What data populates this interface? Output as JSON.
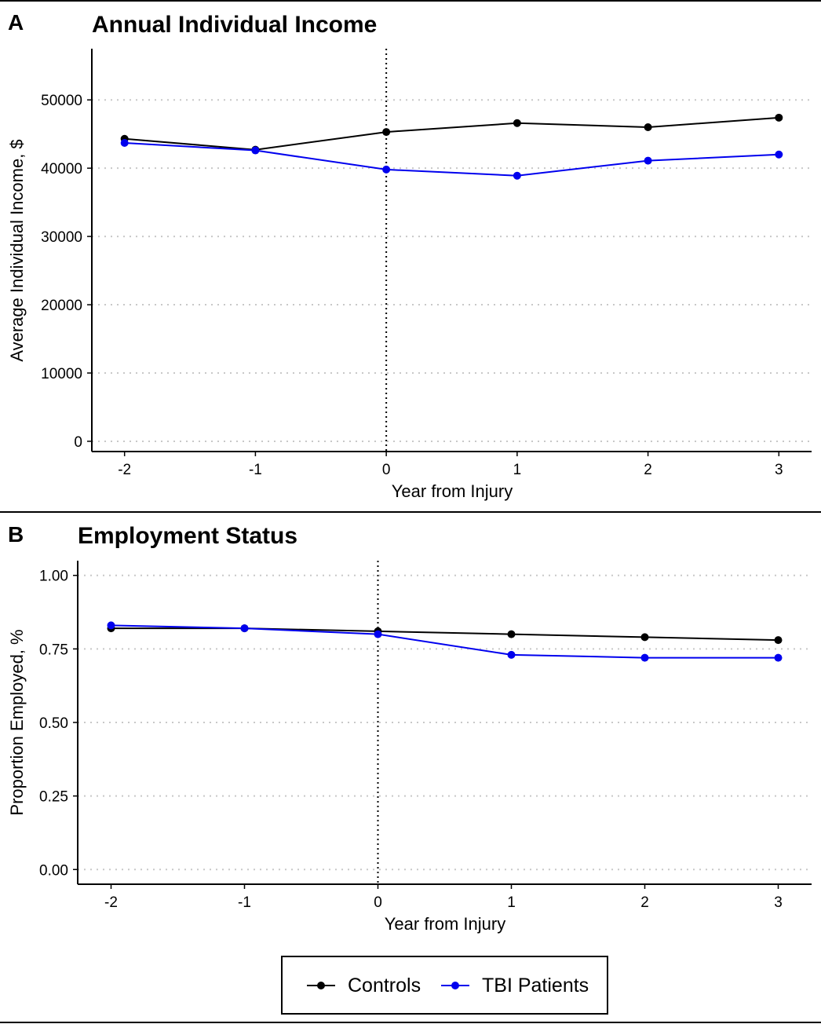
{
  "chart_data": [
    {
      "panel_label": "A",
      "type": "line",
      "title": "Annual Individual Income",
      "xlabel": "Year from Injury",
      "ylabel": "Average Individual Income, $",
      "x": [
        -2,
        -1,
        0,
        1,
        2,
        3
      ],
      "x_tick_labels": [
        "-2",
        "-1",
        "0",
        "1",
        "2",
        "3"
      ],
      "y_ticks": [
        0,
        10000,
        20000,
        30000,
        40000,
        50000
      ],
      "y_tick_labels": [
        "0",
        "10000",
        "20000",
        "30000",
        "40000",
        "50000"
      ],
      "ylim": [
        -1500,
        57500
      ],
      "xlim": [
        -2.25,
        3.25
      ],
      "grid": "horizontal dotted",
      "reference_line_x": 0,
      "series": [
        {
          "name": "Controls",
          "color": "#000000",
          "values": [
            44300,
            42700,
            45300,
            46600,
            46000,
            47400
          ]
        },
        {
          "name": "TBI Patients",
          "color": "#0000ee",
          "values": [
            43700,
            42600,
            39800,
            38900,
            41100,
            42000
          ]
        }
      ]
    },
    {
      "panel_label": "B",
      "type": "line",
      "title": "Employment Status",
      "xlabel": "Year from Injury",
      "ylabel": "Proportion Employed, %",
      "x": [
        -2,
        -1,
        0,
        1,
        2,
        3
      ],
      "x_tick_labels": [
        "-2",
        "-1",
        "0",
        "1",
        "2",
        "3"
      ],
      "y_ticks": [
        0,
        0.25,
        0.5,
        0.75,
        1.0
      ],
      "y_tick_labels": [
        "0.00",
        "0.25",
        "0.50",
        "0.75",
        "1.00"
      ],
      "ylim": [
        -0.05,
        1.05
      ],
      "xlim": [
        -2.25,
        3.25
      ],
      "grid": "horizontal dotted",
      "reference_line_x": 0,
      "series": [
        {
          "name": "Controls",
          "color": "#000000",
          "values": [
            0.82,
            0.82,
            0.81,
            0.8,
            0.79,
            0.78
          ]
        },
        {
          "name": "TBI Patients",
          "color": "#0000ee",
          "values": [
            0.83,
            0.82,
            0.8,
            0.73,
            0.72,
            0.72
          ]
        }
      ]
    }
  ],
  "legend": {
    "placement": "bottom-center",
    "items": [
      {
        "label": "Controls",
        "color": "#000000"
      },
      {
        "label": "TBI Patients",
        "color": "#0000ee"
      }
    ]
  }
}
